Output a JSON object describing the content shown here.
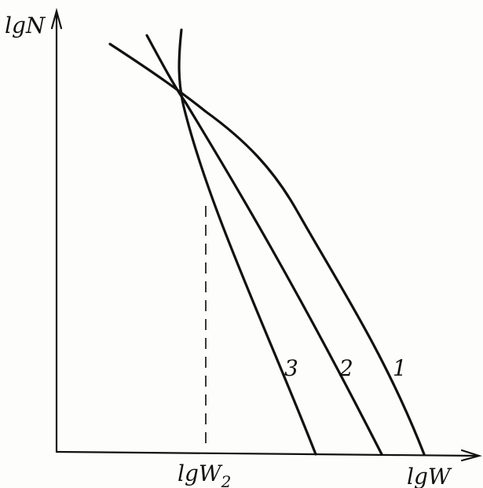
{
  "diagram": {
    "y_axis_label": "lgN",
    "x_axis_label": "lgW",
    "marker_label": "lgW",
    "marker_subscript": "2",
    "curves": [
      {
        "label": "1"
      },
      {
        "label": "2"
      },
      {
        "label": "3"
      }
    ],
    "colors": {
      "ink": "#111111",
      "paper": "#fdfdfb"
    }
  }
}
